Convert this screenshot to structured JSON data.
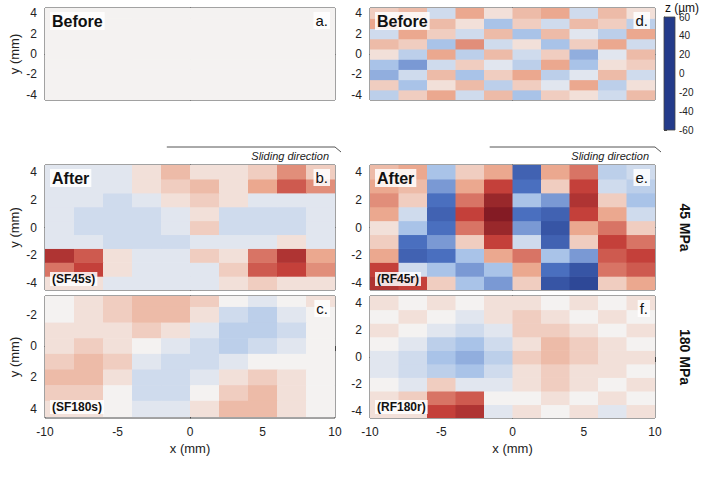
{
  "chart_data": {
    "type": "heatmap",
    "colorbar": {
      "title": "z (µm)",
      "range": [
        -60,
        60
      ],
      "ticks": [
        60,
        40,
        20,
        0,
        -20,
        -40,
        -60
      ],
      "colors": [
        "#243b8a",
        "#4a6fbf",
        "#a9c3e8",
        "#f4f2f1",
        "#eba88f",
        "#c4403a",
        "#6e0f1c"
      ]
    },
    "panels": [
      {
        "letter": "a.",
        "title": "Before",
        "y_label": "y (mm)",
        "tick_labels": "y",
        "xlim": [
          -10,
          10
        ],
        "ylim": [
          -4.5,
          4.5
        ],
        "yticks": [
          -4,
          -2,
          0,
          2,
          4
        ],
        "x": [
          -9,
          -7,
          -5,
          -3,
          -1,
          1,
          3,
          5,
          7,
          9
        ],
        "y": [
          -4,
          -3,
          -2,
          -1,
          0,
          1,
          2,
          3,
          4
        ],
        "values": [
          [
            0,
            0,
            0,
            0,
            0,
            0,
            0,
            0,
            0,
            0
          ],
          [
            0,
            0,
            0,
            0,
            0,
            0,
            0,
            0,
            0,
            0
          ],
          [
            0,
            0,
            0,
            0,
            0,
            0,
            0,
            0,
            0,
            0
          ],
          [
            0,
            0,
            0,
            0,
            0,
            0,
            0,
            0,
            0,
            0
          ],
          [
            0,
            0,
            0,
            0,
            0,
            0,
            0,
            0,
            0,
            0
          ],
          [
            0,
            0,
            0,
            0,
            0,
            0,
            0,
            0,
            0,
            0
          ],
          [
            0,
            0,
            0,
            0,
            0,
            0,
            0,
            0,
            0,
            0
          ],
          [
            0,
            0,
            0,
            0,
            0,
            0,
            0,
            0,
            0,
            0
          ],
          [
            0,
            0,
            0,
            0,
            0,
            0,
            0,
            0,
            0,
            0
          ]
        ]
      },
      {
        "letter": "b.",
        "title": "After",
        "sample": "(SF45s)",
        "note": "Sliding direction",
        "y_label": "y (mm)",
        "tick_labels": "y",
        "xlim": [
          -10,
          10
        ],
        "ylim": [
          -4.5,
          4.5
        ],
        "yticks": [
          -4,
          -2,
          0,
          2,
          4
        ],
        "x": [
          -9,
          -7,
          -5,
          -3,
          -1,
          1,
          3,
          5,
          7,
          9
        ],
        "y": [
          -4,
          -3,
          -2,
          -1,
          0,
          1,
          2,
          3,
          4
        ],
        "values": [
          [
            5,
            5,
            -5,
            -5,
            -5,
            -5,
            5,
            10,
            5,
            5
          ],
          [
            30,
            40,
            5,
            -5,
            -5,
            -5,
            10,
            35,
            40,
            25
          ],
          [
            45,
            35,
            5,
            -5,
            -5,
            10,
            5,
            30,
            45,
            20
          ],
          [
            -5,
            -5,
            -10,
            -10,
            -10,
            -5,
            -5,
            -5,
            5,
            -5
          ],
          [
            -5,
            -10,
            -10,
            -10,
            -5,
            10,
            -10,
            -10,
            -10,
            -5
          ],
          [
            -5,
            -10,
            -10,
            -10,
            -5,
            5,
            -10,
            -10,
            -10,
            -5
          ],
          [
            -5,
            -5,
            -10,
            -5,
            5,
            10,
            5,
            -5,
            -5,
            -5
          ],
          [
            -5,
            -5,
            -5,
            5,
            10,
            15,
            5,
            20,
            35,
            25
          ],
          [
            -5,
            -5,
            -5,
            5,
            15,
            5,
            5,
            10,
            25,
            10
          ]
        ]
      },
      {
        "letter": "c.",
        "sample": "(SF180s)",
        "y_label": "y (mm)",
        "x_label": "x (mm)",
        "xlim": [
          -10,
          10
        ],
        "xticks": [
          -10,
          -5,
          0,
          5,
          10
        ],
        "ylim": [
          4.6,
          -3.2
        ],
        "yticks": [
          -2,
          0,
          2,
          4
        ],
        "x": [
          -9,
          -7,
          -5,
          -3,
          -1,
          1,
          3,
          5,
          7,
          9
        ],
        "y": [
          -3,
          -2,
          -1,
          0,
          1,
          2,
          3,
          4
        ],
        "values": [
          [
            0,
            5,
            10,
            15,
            15,
            10,
            0,
            -5,
            0,
            5
          ],
          [
            0,
            5,
            10,
            15,
            15,
            5,
            -10,
            -15,
            -5,
            0
          ],
          [
            5,
            5,
            5,
            10,
            5,
            -5,
            -15,
            -15,
            -10,
            0
          ],
          [
            5,
            10,
            5,
            0,
            -5,
            -10,
            -15,
            -10,
            -5,
            0
          ],
          [
            10,
            15,
            10,
            -5,
            -10,
            -10,
            -5,
            0,
            0,
            0
          ],
          [
            15,
            15,
            5,
            -10,
            -10,
            -5,
            5,
            10,
            5,
            0
          ],
          [
            10,
            10,
            0,
            -10,
            -10,
            0,
            10,
            15,
            5,
            0
          ],
          [
            5,
            5,
            0,
            -5,
            -5,
            5,
            15,
            15,
            5,
            0
          ]
        ]
      },
      {
        "letter": "d.",
        "title": "Before",
        "tick_labels": "y",
        "xlim": [
          -10,
          10
        ],
        "ylim": [
          -4.5,
          4.5
        ],
        "yticks": [
          -4,
          -2,
          0,
          2,
          4
        ],
        "x": [
          -9,
          -7,
          -5,
          -3,
          -1,
          1,
          3,
          5,
          7,
          9
        ],
        "y": [
          -4,
          -3,
          -2,
          -1,
          0,
          1,
          2,
          3,
          4
        ],
        "values": [
          [
            -15,
            10,
            20,
            -10,
            15,
            -20,
            10,
            5,
            -10,
            15
          ],
          [
            10,
            -20,
            5,
            15,
            -15,
            10,
            -5,
            20,
            -15,
            5
          ],
          [
            -25,
            -10,
            15,
            -20,
            10,
            20,
            -15,
            -5,
            15,
            -10
          ],
          [
            -20,
            -30,
            -10,
            10,
            -5,
            -15,
            20,
            -20,
            5,
            10
          ],
          [
            5,
            -15,
            20,
            -15,
            15,
            -10,
            10,
            -25,
            -5,
            15
          ],
          [
            15,
            10,
            -20,
            25,
            -10,
            5,
            -20,
            10,
            20,
            -10
          ],
          [
            -10,
            20,
            10,
            -10,
            15,
            -20,
            15,
            -5,
            -15,
            20
          ],
          [
            20,
            -5,
            15,
            5,
            -20,
            10,
            -10,
            15,
            10,
            -15
          ],
          [
            10,
            15,
            -10,
            20,
            5,
            15,
            20,
            -10,
            15,
            5
          ]
        ]
      },
      {
        "letter": "e.",
        "title": "After",
        "sample": "(RF45r)",
        "note": "Sliding direction",
        "side_label": "45 MPa",
        "tick_labels": "y",
        "xlim": [
          -10,
          10
        ],
        "ylim": [
          -4.5,
          4.5
        ],
        "yticks": [
          -4,
          -2,
          0,
          2,
          4
        ],
        "x": [
          -9,
          -7,
          -5,
          -3,
          -1,
          1,
          3,
          5,
          7,
          9
        ],
        "y": [
          -4,
          -3,
          -2,
          -1,
          0,
          1,
          2,
          3,
          4
        ],
        "values": [
          [
            45,
            40,
            10,
            -20,
            -30,
            10,
            -50,
            -55,
            10,
            20
          ],
          [
            40,
            -10,
            -20,
            -30,
            -20,
            20,
            -40,
            -50,
            30,
            35
          ],
          [
            20,
            -45,
            -40,
            -20,
            20,
            30,
            -20,
            -30,
            35,
            40
          ],
          [
            10,
            -40,
            -30,
            10,
            40,
            -10,
            -45,
            10,
            40,
            30
          ],
          [
            5,
            -20,
            -40,
            30,
            50,
            -30,
            -50,
            20,
            30,
            10
          ],
          [
            20,
            -10,
            -45,
            40,
            55,
            -40,
            -45,
            40,
            20,
            -10
          ],
          [
            25,
            10,
            -40,
            30,
            50,
            -20,
            -30,
            45,
            10,
            -20
          ],
          [
            20,
            15,
            -30,
            20,
            40,
            -40,
            10,
            40,
            -10,
            -15
          ],
          [
            15,
            20,
            -20,
            10,
            20,
            -45,
            20,
            30,
            -15,
            -10
          ]
        ]
      },
      {
        "letter": "f.",
        "sample": "(RF180r)",
        "side_label": "180 MPa",
        "x_label": "x (mm)",
        "xlim": [
          -10,
          10
        ],
        "xticks": [
          -10,
          -5,
          0,
          5,
          10
        ],
        "ylim": [
          -4.5,
          4.5
        ],
        "yticks": [
          -4,
          -2,
          0,
          2,
          4
        ],
        "x": [
          -9,
          -7,
          -5,
          -3,
          -1,
          1,
          3,
          5,
          7,
          9
        ],
        "y": [
          -4,
          -3,
          -2,
          -1,
          0,
          1,
          2,
          3,
          4
        ],
        "values": [
          [
            5,
            5,
            40,
            45,
            -5,
            5,
            0,
            5,
            -5,
            5
          ],
          [
            5,
            10,
            30,
            35,
            0,
            0,
            5,
            0,
            5,
            0
          ],
          [
            0,
            -5,
            10,
            -5,
            -5,
            5,
            10,
            5,
            0,
            5
          ],
          [
            -5,
            -10,
            -15,
            -20,
            -10,
            5,
            10,
            5,
            5,
            0
          ],
          [
            -5,
            -10,
            -20,
            -25,
            -15,
            10,
            15,
            10,
            5,
            5
          ],
          [
            0,
            -5,
            -15,
            -20,
            -10,
            5,
            15,
            10,
            5,
            0
          ],
          [
            5,
            0,
            -5,
            -10,
            -5,
            10,
            10,
            5,
            0,
            5
          ],
          [
            0,
            5,
            0,
            -5,
            5,
            10,
            5,
            0,
            5,
            0
          ],
          [
            5,
            0,
            5,
            0,
            5,
            5,
            0,
            5,
            0,
            5
          ]
        ]
      }
    ]
  }
}
